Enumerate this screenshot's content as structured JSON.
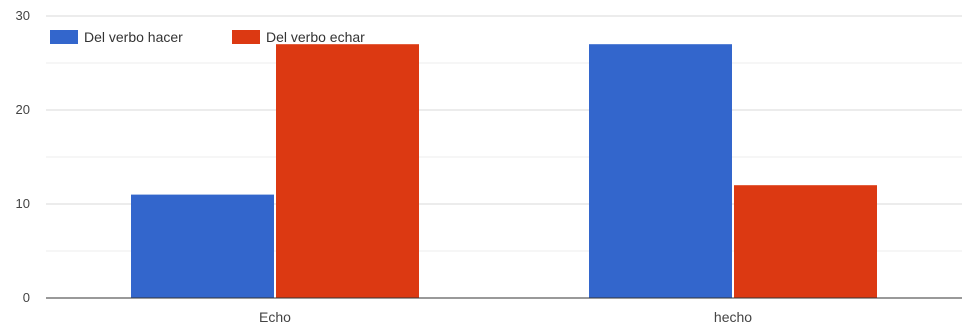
{
  "chart_data": {
    "type": "bar",
    "categories": [
      "Echo",
      "hecho"
    ],
    "series": [
      {
        "name": "Del verbo hacer",
        "values": [
          11,
          27
        ],
        "color": "#3366cc"
      },
      {
        "name": "Del verbo echar",
        "values": [
          27,
          12
        ],
        "color": "#dc3912"
      }
    ],
    "title": "",
    "xlabel": "",
    "ylabel": "",
    "ylim": [
      0,
      30
    ],
    "yticks": [
      0,
      10,
      20,
      30
    ],
    "grid": true,
    "legend_position": "top-left"
  }
}
